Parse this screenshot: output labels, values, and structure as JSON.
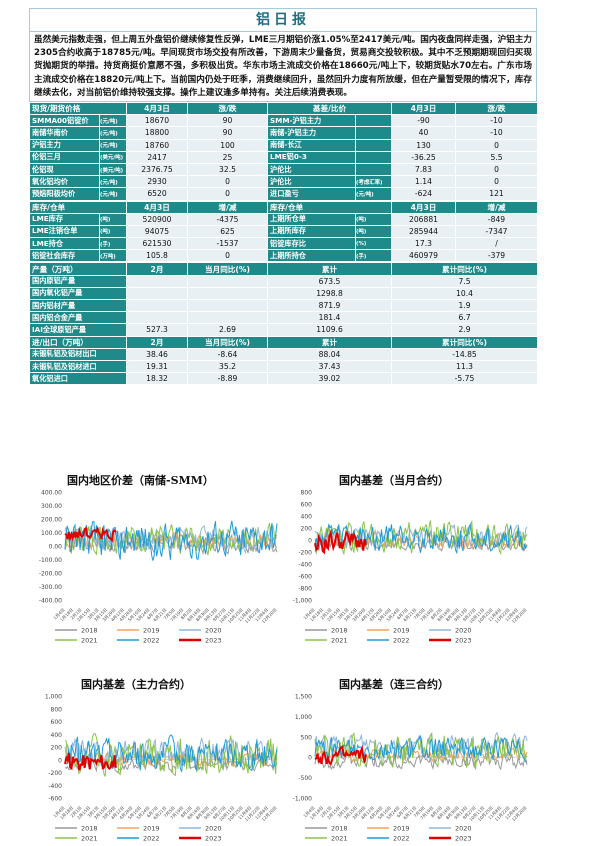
{
  "title": "铝日报",
  "summary": "虽然美元指数走强，但上周五外盘铝价继续修复性反弹，LME三月期铝价涨1.05%至2417美元/吨。国内夜盘同样走强，沪铝主力2305合约收高于18785元/吨。早间现货市场交投有所改善，下游周末少量备货，贸易商交投较积极。其中不乏预期期现回归买现货抛期货的举措。持货商挺价意愿不强，多积极出货。华东市场主流成交价格在18660元/吨上下，较期货贴水70左右。广东市场主流成交价格在18820元/吨上下。当前国内仍处于旺季，消费继续回升，虽然回升力度有所放缓，但在产量暂受限的情况下，库存继续去化，对当前铝价维持较强支撑。操作上建议逢多单持有。关注后续消费表现。",
  "table1": {
    "header": [
      "现货/期货价格",
      "4月3日",
      "涨/跌",
      "基差/比价",
      "4月3日",
      "涨/跌"
    ],
    "rows": [
      [
        "SMMA00铝锭价",
        "(元/吨)",
        "18670",
        "90",
        "SMM-沪铝主力",
        "",
        "-90",
        "-10"
      ],
      [
        "南储华南价",
        "(元/吨)",
        "18800",
        "90",
        "南储-沪铝主力",
        "",
        "40",
        "-10"
      ],
      [
        "沪铝主力",
        "(元/吨)",
        "18760",
        "100",
        "南储-长江",
        "",
        "130",
        "0"
      ],
      [
        "伦铝三月",
        "(美元/吨)",
        "2417",
        "25",
        "LME铝0-3",
        "",
        "-36.25",
        "5.5"
      ],
      [
        "伦铝现",
        "(美元/吨)",
        "2376.75",
        "32.5",
        "沪伦比",
        "",
        "7.83",
        "0"
      ],
      [
        "氧化铝均价",
        "(元/吨)",
        "2930",
        "0",
        "沪伦比",
        "(考虑汇率)",
        "1.14",
        "0"
      ],
      [
        "预焙阳极均价",
        "(元/吨)",
        "6520",
        "0",
        "进口盈亏",
        "(元/吨)",
        "-624",
        "121"
      ]
    ]
  },
  "table2": {
    "header": [
      "库存/仓单",
      "4月3日",
      "增/减",
      "库存/仓单",
      "4月3日",
      "增/减"
    ],
    "rows": [
      [
        "LME库存",
        "(吨)",
        "520900",
        "-4375",
        "上期所仓单",
        "(吨)",
        "206881",
        "-849"
      ],
      [
        "LME注销仓单",
        "(吨)",
        "94075",
        "625",
        "上期所库存",
        "(吨)",
        "285944",
        "-7347"
      ],
      [
        "LME持仓",
        "(手)",
        "621530",
        "-1537",
        "铝锭库存比",
        "(%)",
        "17.3",
        "/"
      ],
      [
        "铝锭社会库存",
        "(万吨)",
        "105.8",
        "0",
        "上期所持仓",
        "(手)",
        "460979",
        "-379"
      ]
    ]
  },
  "table3": {
    "header": [
      "产量（万吨）",
      "2月",
      "当月同比(%)",
      "累计",
      "累计同比(%)"
    ],
    "rows": [
      [
        "国内原铝产量",
        "",
        "",
        "673.5",
        "7.5"
      ],
      [
        "国内氧化铝产量",
        "",
        "",
        "1298.8",
        "10.4"
      ],
      [
        "国内铝材产量",
        "",
        "",
        "871.9",
        "1.9"
      ],
      [
        "国内铝合金产量",
        "",
        "",
        "181.4",
        "6.7"
      ],
      [
        "IAI全球原铝产量",
        "527.3",
        "2.69",
        "1109.6",
        "2.9"
      ]
    ]
  },
  "table4": {
    "header": [
      "进/出口（万吨）",
      "2月",
      "当月同比(%)",
      "累计",
      "累计同比(%)"
    ],
    "rows": [
      [
        "未锻轧铝及铝材出口",
        "38.46",
        "-8.64",
        "88.04",
        "-14.85"
      ],
      [
        "未锻轧铝及铝材进口",
        "19.31",
        "35.2",
        "37.43",
        "11.3"
      ],
      [
        "氧化铝进口",
        "18.32",
        "-8.89",
        "39.02",
        "-5.75"
      ]
    ]
  },
  "colors": {
    "teal": "#1f8a8a",
    "cell": "#e9f0f4",
    "s2018": "#9a9a9a",
    "s2019": "#f4a460",
    "s2020": "#8fb6dc",
    "s2021": "#8bc34a",
    "s2022": "#1e9bd7",
    "s2023": "#e00000"
  },
  "chart_data": [
    {
      "type": "line",
      "title": "国内地区价差（南储-SMM）",
      "ylim": [
        -400,
        400
      ],
      "yticks": [
        "400.00",
        "300.00",
        "200.00",
        "100.00",
        "0.00",
        "-100.00",
        "-200.00",
        "-300.00",
        "-400.00"
      ],
      "xticks": [
        "1月4日",
        "1月18日",
        "2月1日",
        "2月15日",
        "3月1日",
        "3月15日",
        "3月29日",
        "4月12日",
        "4月26日",
        "5月10日",
        "5月24日",
        "6月7日",
        "6月21日",
        "7月5日",
        "7月19日",
        "8月2日",
        "8月16日",
        "8月30日",
        "9月13日",
        "9月27日",
        "10月11日",
        "10月25日",
        "11月8日",
        "11月22日",
        "12月6日",
        "12月20日"
      ],
      "series": [
        {
          "name": "2018",
          "colorKey": "s2018",
          "level": 20,
          "amp": 60
        },
        {
          "name": "2019",
          "colorKey": "s2019",
          "level": 40,
          "amp": 50
        },
        {
          "name": "2020",
          "colorKey": "s2020",
          "level": 60,
          "amp": 80
        },
        {
          "name": "2021",
          "colorKey": "s2021",
          "level": 50,
          "amp": 90
        },
        {
          "name": "2022",
          "colorKey": "s2022",
          "level": 30,
          "amp": 120
        },
        {
          "name": "2023",
          "colorKey": "s2023",
          "level": 90,
          "amp": 40,
          "short": true
        }
      ]
    },
    {
      "type": "line",
      "title": "国内基差（当月合约）",
      "ylim": [
        -1000,
        800
      ],
      "yticks": [
        "800",
        "600",
        "400",
        "200",
        "0",
        "-200",
        "-400",
        "-600",
        "-800",
        "-1,000"
      ],
      "xticks": [
        "1月4日",
        "1月18日",
        "2月1日",
        "2月15日",
        "3月1日",
        "3月15日",
        "3月29日",
        "4月12日",
        "4月26日",
        "5月10日",
        "5月24日",
        "6月7日",
        "6月21日",
        "7月5日",
        "7月19日",
        "8月2日",
        "8月16日",
        "8月30日",
        "9月13日",
        "9月27日",
        "10月11日",
        "10月25日",
        "11月8日",
        "11月22日",
        "12月6日",
        "12月20日"
      ],
      "series": [
        {
          "name": "2018",
          "colorKey": "s2018",
          "level": -80,
          "amp": 80
        },
        {
          "name": "2019",
          "colorKey": "s2019",
          "level": 0,
          "amp": 120
        },
        {
          "name": "2020",
          "colorKey": "s2020",
          "level": 60,
          "amp": 150
        },
        {
          "name": "2021",
          "colorKey": "s2021",
          "level": 40,
          "amp": 220
        },
        {
          "name": "2022",
          "colorKey": "s2022",
          "level": 30,
          "amp": 200
        },
        {
          "name": "2023",
          "colorKey": "s2023",
          "level": -40,
          "amp": 150,
          "short": true
        }
      ]
    },
    {
      "type": "line",
      "title": "国内基差（主力合约）",
      "ylim": [
        -600,
        1000
      ],
      "yticks": [
        "1,000",
        "800",
        "600",
        "400",
        "200",
        "0",
        "-200",
        "-400",
        "-600"
      ],
      "xticks": [
        "1月4日",
        "1月18日",
        "2月1日",
        "2月15日",
        "3月1日",
        "3月15日",
        "3月29日",
        "4月12日",
        "4月26日",
        "5月10日",
        "5月24日",
        "6月7日",
        "6月21日",
        "7月5日",
        "7月19日",
        "8月2日",
        "8月16日",
        "8月30日",
        "9月13日",
        "9月27日",
        "10月11日",
        "10月25日",
        "11月8日",
        "11月22日",
        "12月6日",
        "12月20日"
      ],
      "series": [
        {
          "name": "2018",
          "colorKey": "s2018",
          "level": -80,
          "amp": 90
        },
        {
          "name": "2019",
          "colorKey": "s2019",
          "level": 0,
          "amp": 100
        },
        {
          "name": "2020",
          "colorKey": "s2020",
          "level": 120,
          "amp": 180
        },
        {
          "name": "2021",
          "colorKey": "s2021",
          "level": 60,
          "amp": 260
        },
        {
          "name": "2022",
          "colorKey": "s2022",
          "level": 80,
          "amp": 220
        },
        {
          "name": "2023",
          "colorKey": "s2023",
          "level": -40,
          "amp": 140,
          "short": true
        }
      ]
    },
    {
      "type": "line",
      "title": "国内基差（连三合约）",
      "ylim": [
        -1000,
        1500
      ],
      "yticks": [
        "1,500",
        "1,000",
        "500",
        "0",
        "-500",
        "-1,000"
      ],
      "xticks": [
        "1月4日",
        "1月18日",
        "2月1日",
        "2月15日",
        "3月1日",
        "3月15日",
        "3月29日",
        "4月12日",
        "4月26日",
        "5月10日",
        "5月24日",
        "6月7日",
        "6月21日",
        "7月5日",
        "7月19日",
        "8月2日",
        "8月16日",
        "8月30日",
        "9月13日",
        "9月27日",
        "10月11日",
        "10月25日",
        "11月8日",
        "11月22日",
        "12月6日",
        "12月20日"
      ],
      "series": [
        {
          "name": "2018",
          "colorKey": "s2018",
          "level": -100,
          "amp": 150
        },
        {
          "name": "2019",
          "colorKey": "s2019",
          "level": 50,
          "amp": 120
        },
        {
          "name": "2020",
          "colorKey": "s2020",
          "level": 250,
          "amp": 250
        },
        {
          "name": "2021",
          "colorKey": "s2021",
          "level": 150,
          "amp": 350
        },
        {
          "name": "2022",
          "colorKey": "s2022",
          "level": 200,
          "amp": 250
        },
        {
          "name": "2023",
          "colorKey": "s2023",
          "level": 0,
          "amp": 180,
          "short": true
        }
      ]
    }
  ]
}
